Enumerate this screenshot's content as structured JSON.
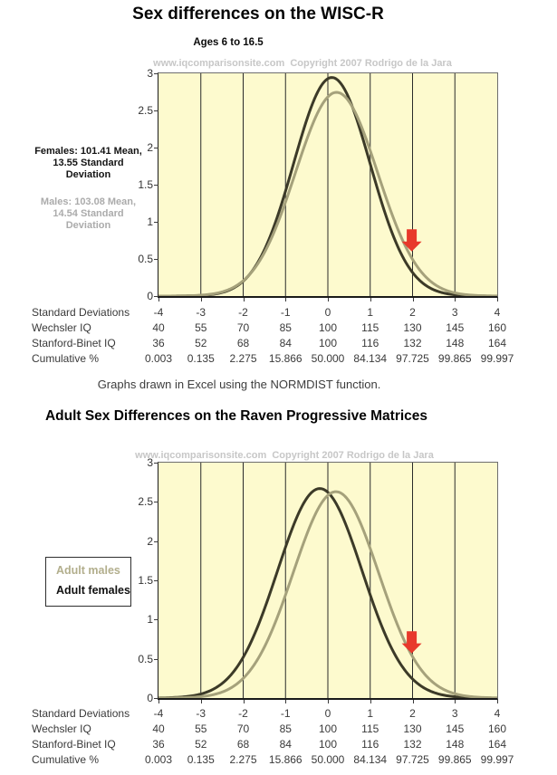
{
  "page": {
    "title1": "Sex differences on the WISC-R",
    "subtitle1": "Ages 6 to 16.5",
    "watermark": "www.iqcomparisonsite.com  Copyright 2007 Rodrigo de la Jara",
    "note": "Graphs drawn in Excel using the NORMDIST function.",
    "title2": "Adult Sex Differences on the Raven Progressive Matrices"
  },
  "colors": {
    "plot_bg": "#FDFACE",
    "grid": "#2a2a2a",
    "female_curve": "#3c3a28",
    "male_curve": "#a5a17b",
    "arrow": "#e8392b",
    "watermark": "#c7c7c7",
    "gray_annotation": "#ababab",
    "legend_male_text": "#b2ae8c",
    "table_text": "#3a3a3a"
  },
  "chart1": {
    "annotation_female": {
      "lines": [
        "Females: 101.41 Mean,",
        "13.55 Standard",
        "Deviation"
      ]
    },
    "annotation_male": {
      "lines": [
        "Males: 103.08 Mean,",
        "14.54 Standard",
        "Deviation"
      ]
    }
  },
  "chart2": {
    "legend": {
      "male": "Adult males",
      "female": "Adult females"
    }
  },
  "axis_table": {
    "rows": [
      {
        "label": "Standard Deviations",
        "values": [
          "-4",
          "-3",
          "-2",
          "-1",
          "0",
          "1",
          "2",
          "3",
          "4"
        ]
      },
      {
        "label": "Wechsler IQ",
        "values": [
          "40",
          "55",
          "70",
          "85",
          "100",
          "115",
          "130",
          "145",
          "160"
        ]
      },
      {
        "label": "Stanford-Binet IQ",
        "values": [
          "36",
          "52",
          "68",
          "84",
          "100",
          "116",
          "132",
          "148",
          "164"
        ]
      },
      {
        "label": "Cumulative %",
        "values": [
          "0.003",
          "0.135",
          "2.275",
          "15.866",
          "50.000",
          "84.134",
          "97.725",
          "99.865",
          "99.997"
        ]
      }
    ]
  },
  "chart_data": [
    {
      "type": "line",
      "title": "Sex differences on the WISC-R",
      "subtitle": "Ages 6 to 16.5",
      "xlabel": "Standard Deviations (Wechsler IQ 40-160, Stanford-Binet IQ 36-164, Cumulative % 0.003-99.997 per axis_table)",
      "ylabel": "",
      "xlim": [
        -4,
        4
      ],
      "ylim": [
        0,
        3
      ],
      "x_tick_labels": [
        "-4",
        "-3",
        "-2",
        "-1",
        "0",
        "1",
        "2",
        "3",
        "4"
      ],
      "y_tick_labels": [
        "3",
        "2.5",
        "2",
        "1.5",
        "1",
        "0.5",
        "0"
      ],
      "grid": "vertical gridline at every standard deviation",
      "curve_model": "y = 100 * normal density on IQ scale (mean 100, SD 15)",
      "series": [
        {
          "name": "Females",
          "mean": 101.41,
          "sd": 13.55,
          "mean_sd": 0.094,
          "sigma_sd": 0.9033,
          "peak_y": 2.944,
          "color_key": "female_curve",
          "data_name": "females-curve"
        },
        {
          "name": "Males",
          "mean": 103.08,
          "sd": 14.54,
          "mean_sd": 0.2053,
          "sigma_sd": 0.9693,
          "peak_y": 2.744,
          "color_key": "male_curve",
          "data_name": "males-curve"
        }
      ],
      "marker": {
        "shape": "red-down-arrow",
        "x_sd": 1.98,
        "tip_y": 0.6,
        "top_y": 0.9
      }
    },
    {
      "type": "line",
      "title": "Adult Sex Differences on the Raven Progressive Matrices",
      "xlabel": "Standard Deviations (same axis_table scales)",
      "ylabel": "",
      "xlim": [
        -4,
        4
      ],
      "ylim": [
        0,
        3
      ],
      "x_tick_labels": [
        "-4",
        "-3",
        "-2",
        "-1",
        "0",
        "1",
        "2",
        "3",
        "4"
      ],
      "y_tick_labels": [
        "3",
        "2.5",
        "2",
        "1.5",
        "1",
        "0.5",
        "0"
      ],
      "grid": "vertical gridline at every standard deviation",
      "legend": [
        "Adult males",
        "Adult females"
      ],
      "series": [
        {
          "name": "Adult females",
          "mean_sd": -0.19,
          "sigma_sd": 1.0,
          "peak_y": 2.67,
          "estimated": true,
          "color_key": "female_curve",
          "data_name": "adult-females-curve"
        },
        {
          "name": "Adult males",
          "mean_sd": 0.19,
          "sigma_sd": 1.01,
          "peak_y": 2.63,
          "estimated": true,
          "color_key": "male_curve",
          "data_name": "adult-males-curve"
        }
      ],
      "marker": {
        "shape": "red-down-arrow",
        "x_sd": 1.98,
        "tip_y": 0.57,
        "top_y": 0.85
      }
    }
  ]
}
